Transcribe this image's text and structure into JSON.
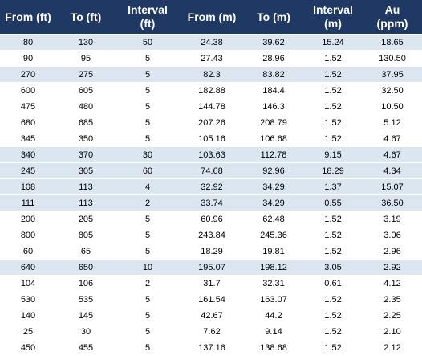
{
  "table": {
    "headers": [
      [
        "From (ft)"
      ],
      [
        "To (ft)"
      ],
      [
        "Interval",
        "(ft)"
      ],
      [
        "From (m)"
      ],
      [
        "To (m)"
      ],
      [
        "Interval",
        "(m)"
      ],
      [
        "Au",
        "(ppm)"
      ]
    ],
    "rows": [
      {
        "shaded": true,
        "cells": [
          "80",
          "130",
          "50",
          "24.38",
          "39.62",
          "15.24",
          "18.65"
        ]
      },
      {
        "shaded": false,
        "cells": [
          "90",
          "95",
          "5",
          "27.43",
          "28.96",
          "1.52",
          "130.50"
        ]
      },
      {
        "shaded": true,
        "cells": [
          "270",
          "275",
          "5",
          "82.3",
          "83.82",
          "1.52",
          "37.95"
        ]
      },
      {
        "shaded": false,
        "cells": [
          "600",
          "605",
          "5",
          "182.88",
          "184.4",
          "1.52",
          "32.50"
        ]
      },
      {
        "shaded": false,
        "cells": [
          "475",
          "480",
          "5",
          "144.78",
          "146.3",
          "1.52",
          "10.50"
        ]
      },
      {
        "shaded": false,
        "cells": [
          "680",
          "685",
          "5",
          "207.26",
          "208.79",
          "1.52",
          "5.12"
        ]
      },
      {
        "shaded": false,
        "cells": [
          "345",
          "350",
          "5",
          "105.16",
          "106.68",
          "1.52",
          "4.67"
        ]
      },
      {
        "shaded": true,
        "cells": [
          "340",
          "370",
          "30",
          "103.63",
          "112.78",
          "9.15",
          "4.67"
        ]
      },
      {
        "shaded": true,
        "cells": [
          "245",
          "305",
          "60",
          "74.68",
          "92.96",
          "18.29",
          "4.34"
        ]
      },
      {
        "shaded": true,
        "cells": [
          "108",
          "113",
          "4",
          "32.92",
          "34.29",
          "1.37",
          "15.07"
        ]
      },
      {
        "shaded": true,
        "cells": [
          "111",
          "113",
          "2",
          "33.74",
          "34.29",
          "0.55",
          "36.50"
        ]
      },
      {
        "shaded": false,
        "cells": [
          "200",
          "205",
          "5",
          "60.96",
          "62.48",
          "1.52",
          "3.19"
        ]
      },
      {
        "shaded": false,
        "cells": [
          "800",
          "805",
          "5",
          "243.84",
          "245.36",
          "1.52",
          "3.06"
        ]
      },
      {
        "shaded": false,
        "cells": [
          "60",
          "65",
          "5",
          "18.29",
          "19.81",
          "1.52",
          "2.96"
        ]
      },
      {
        "shaded": true,
        "cells": [
          "640",
          "650",
          "10",
          "195.07",
          "198.12",
          "3.05",
          "2.92"
        ]
      },
      {
        "shaded": false,
        "cells": [
          "104",
          "106",
          "2",
          "31.7",
          "32.31",
          "0.61",
          "4.12"
        ]
      },
      {
        "shaded": false,
        "cells": [
          "530",
          "535",
          "5",
          "161.54",
          "163.07",
          "1.52",
          "2.35"
        ]
      },
      {
        "shaded": false,
        "cells": [
          "140",
          "145",
          "5",
          "42.67",
          "44.2",
          "1.52",
          "2.25"
        ]
      },
      {
        "shaded": false,
        "cells": [
          "25",
          "30",
          "5",
          "7.62",
          "9.14",
          "1.52",
          "2.10"
        ]
      },
      {
        "shaded": false,
        "cells": [
          "450",
          "455",
          "5",
          "137.16",
          "138.68",
          "1.52",
          "2.12"
        ]
      }
    ]
  },
  "colors": {
    "header_bg": "#1f3864",
    "header_text": "#ffffff",
    "shaded_row": "#dce6f1",
    "plain_row": "#ffffff"
  }
}
